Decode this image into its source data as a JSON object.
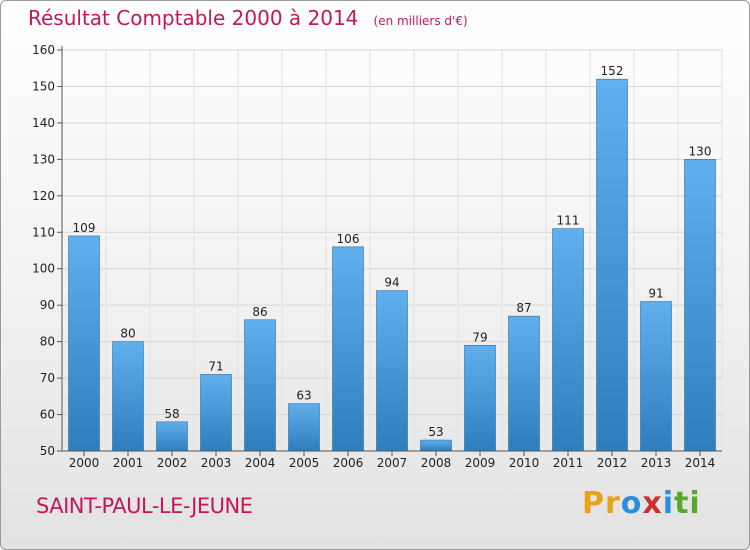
{
  "title": "Résultat Comptable 2000 à 2014",
  "unit": "(en milliers d'€)",
  "city": "SAINT-PAUL-LE-JEUNE",
  "brand": {
    "letters": [
      "P",
      "r",
      "o",
      "x",
      "i",
      "t",
      "i"
    ],
    "colors": [
      "#e8a218",
      "#e8a218",
      "#2a8fd8",
      "#cf2f2f",
      "#2a8fd8",
      "#58a832",
      "#58a832"
    ]
  },
  "colors": {
    "bar_top": "#5fb0ec",
    "bar_bottom": "#2e7ebd",
    "accent": "#c2185b"
  },
  "chart_data": {
    "type": "bar",
    "title": "Résultat Comptable 2000 à 2014",
    "categories": [
      "2000",
      "2001",
      "2002",
      "2003",
      "2004",
      "2005",
      "2006",
      "2007",
      "2008",
      "2009",
      "2010",
      "2011",
      "2012",
      "2013",
      "2014"
    ],
    "values": [
      109,
      80,
      58,
      71,
      86,
      63,
      106,
      94,
      53,
      79,
      87,
      111,
      152,
      91,
      130
    ],
    "ylim": [
      50,
      160
    ],
    "yticks": [
      50,
      60,
      70,
      80,
      90,
      100,
      110,
      120,
      130,
      140,
      150,
      160
    ],
    "xlabel": "",
    "ylabel": ""
  }
}
